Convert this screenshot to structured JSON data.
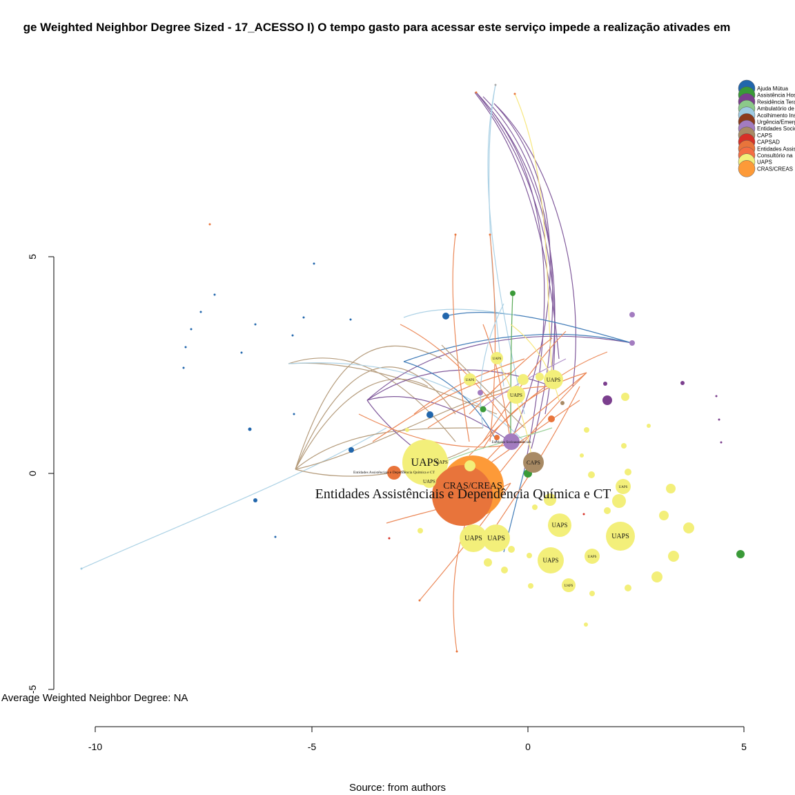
{
  "title": "ge Weighted Neighbor Degree Sized - 17_ACESSO I) O tempo gasto para acessar este serviço impede a realização ativades em",
  "stat_line": "Average Weighted Neighbor Degree: NA",
  "source": "Source: from authors",
  "axes": {
    "x_ticks": [
      "-10",
      "-5",
      "0",
      "5"
    ],
    "y_ticks": [
      "5",
      "0",
      "-5"
    ]
  },
  "legend": [
    {
      "label": "Ajuda Mútua",
      "color": "#2166ac"
    },
    {
      "label": "Assistência Hos",
      "color": "#3a9a38"
    },
    {
      "label": "Residência Tera",
      "color": "#7b3f8e"
    },
    {
      "label": "Ambulatório de",
      "color": "#8cc98a"
    },
    {
      "label": "Acolhimento Ins",
      "color": "#9ecae1"
    },
    {
      "label": "Urgência/Emerg",
      "color": "#8c3a1c"
    },
    {
      "label": "Entidades Socio",
      "color": "#a37cc0"
    },
    {
      "label": "CAPS",
      "color": "#a88a64"
    },
    {
      "label": "CAPSAD",
      "color": "#d73027"
    },
    {
      "label": "Entidades Assis",
      "color": "#e8743b"
    },
    {
      "label": "Consultório na",
      "color": "#f46d43"
    },
    {
      "label": "UAPS",
      "color": "#f3ef7a"
    },
    {
      "label": "CRAS/CREAS",
      "color": "#fd9a38"
    }
  ],
  "node_labels": {
    "big_entidades": "Entidades Assistênciais e Dependência Química e CT",
    "small_entidades": "Entidades Assistênciais e Dependência Química e CT",
    "cras": "CRAS/CREAS",
    "uaps": "UAPS",
    "caps": "CAPS",
    "entidades_socio": "Entidades Socioassistenciais"
  }
}
